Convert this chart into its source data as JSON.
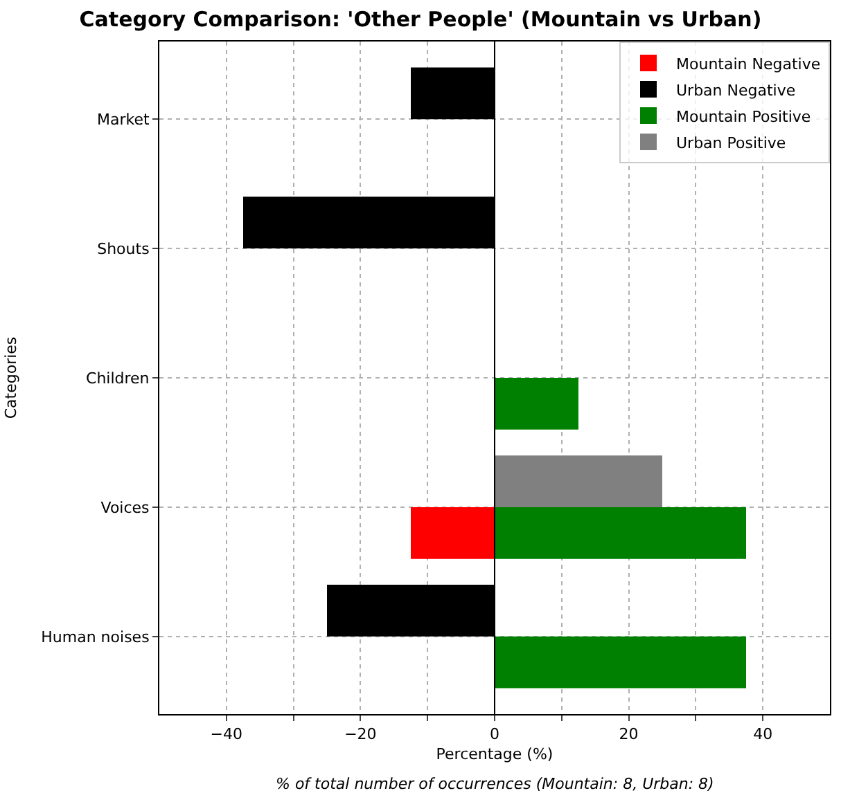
{
  "chart_data": {
    "type": "bar",
    "orientation": "horizontal",
    "title": "Category Comparison: 'Other People' (Mountain vs Urban)",
    "xlabel": "Percentage (%)",
    "ylabel": "Categories",
    "categories": [
      "Market",
      "Shouts",
      "Children",
      "Voices",
      "Human noises"
    ],
    "series": [
      {
        "name": "Mountain Negative",
        "color": "#ff0000",
        "values": [
          null,
          null,
          null,
          -12.5,
          null
        ]
      },
      {
        "name": "Urban Negative",
        "color": "#000000",
        "values": [
          -12.5,
          -37.5,
          null,
          null,
          -25
        ]
      },
      {
        "name": "Mountain Positive",
        "color": "#008000",
        "values": [
          null,
          null,
          12.5,
          37.5,
          37.5
        ]
      },
      {
        "name": "Urban Positive",
        "color": "#808080",
        "values": [
          null,
          null,
          null,
          25,
          null
        ]
      }
    ],
    "xlim": [
      -50,
      50
    ],
    "xticks": [
      -40,
      {
        "value": -30,
        "label": null
      },
      -20,
      {
        "value": -10,
        "label": null
      },
      0,
      {
        "value": 10,
        "label": null
      },
      20,
      {
        "value": 30,
        "label": null
      },
      40
    ],
    "ref_lines": [
      {
        "axis": "x",
        "value": 0,
        "color": "#000000"
      }
    ],
    "annotations": [
      "% of total number of occurrences (Mountain: 8, Urban: 8)"
    ],
    "grid": true,
    "legend": "top right"
  }
}
